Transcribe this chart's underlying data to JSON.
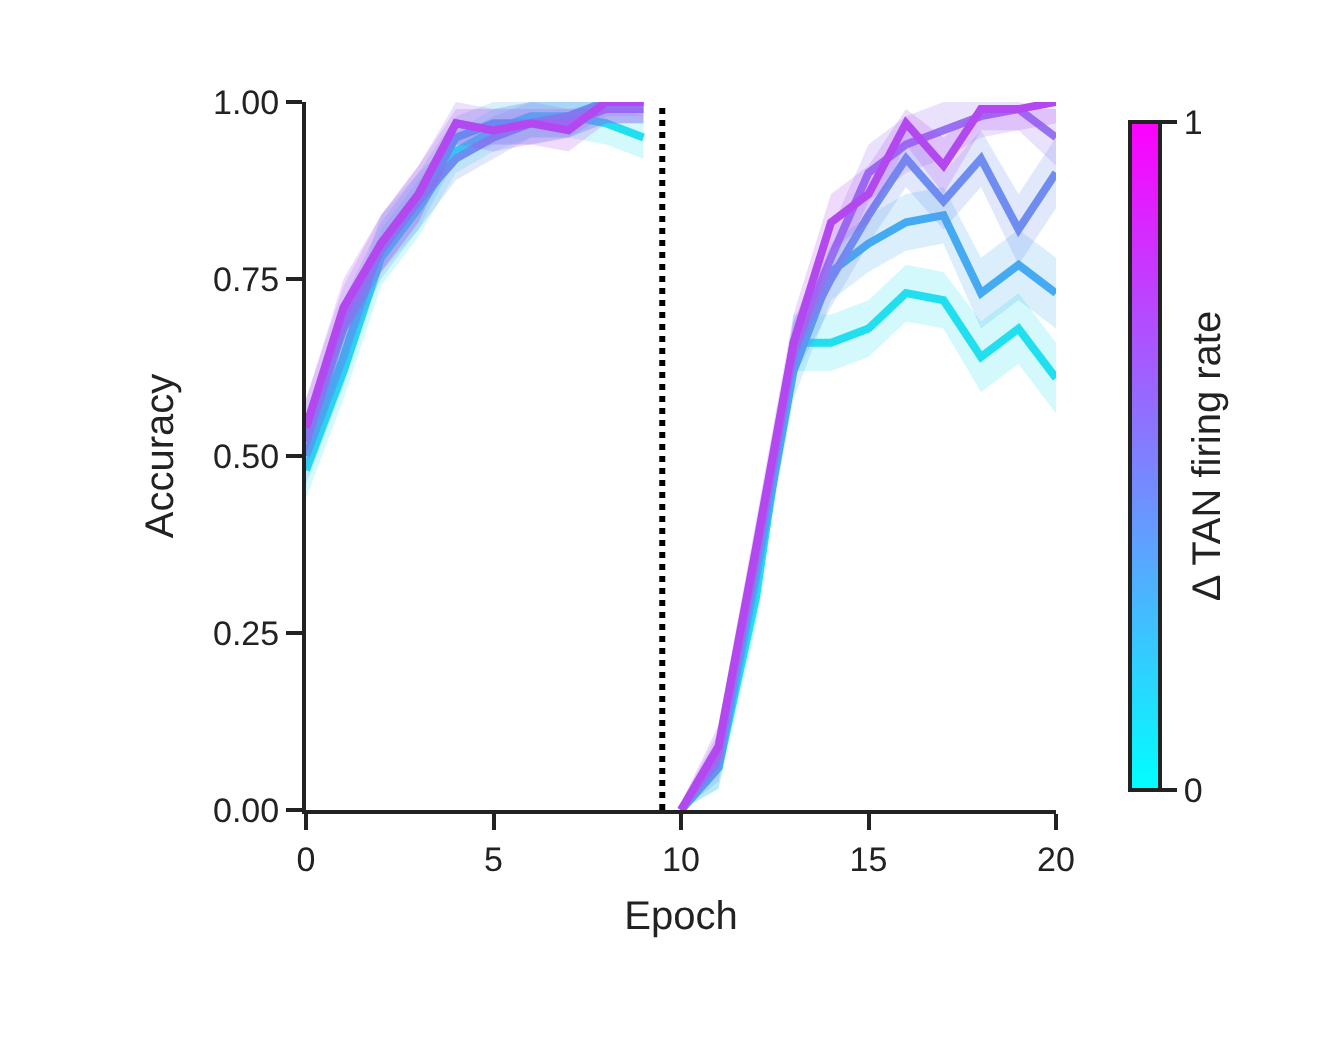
{
  "chart_data": {
    "type": "line",
    "xlabel": "Epoch",
    "ylabel": "Accuracy",
    "clabel": "Δ TAN firing rate",
    "xlim": [
      0,
      20
    ],
    "xticks": [
      0,
      5,
      10,
      15,
      20
    ],
    "ylim": [
      0,
      1
    ],
    "yticks": [
      {
        "value": 0,
        "label": "0.00"
      },
      {
        "value": 0.25,
        "label": "0.25"
      },
      {
        "value": 0.5,
        "label": "0.50"
      },
      {
        "value": 0.75,
        "label": "0.75"
      },
      {
        "value": 1,
        "label": "1.00"
      }
    ],
    "clim": [
      0,
      1
    ],
    "cticks": [
      0,
      1
    ],
    "grid": false,
    "marker": "none",
    "line_style": "solid",
    "ref_lines": [
      {
        "axis": "x",
        "value": 9.5,
        "color": "#000000",
        "line_style": "dotted"
      }
    ],
    "series": [
      {
        "color": "#22dff0",
        "x": [
          0,
          1,
          2,
          3,
          4,
          5,
          6,
          7,
          8,
          9
        ],
        "values": [
          0.48,
          0.62,
          0.78,
          0.85,
          0.93,
          0.96,
          0.98,
          0.98,
          0.97,
          0.95
        ],
        "lower": [
          0.44,
          0.58,
          0.74,
          0.81,
          0.9,
          0.93,
          0.95,
          0.95,
          0.94,
          0.92
        ],
        "upper": [
          0.52,
          0.66,
          0.82,
          0.89,
          0.96,
          0.99,
          1.0,
          1.0,
          1.0,
          0.98
        ]
      },
      {
        "color": "#44aaf2",
        "x": [
          0,
          1,
          2,
          3,
          4,
          5,
          6,
          7,
          8,
          9
        ],
        "values": [
          0.5,
          0.64,
          0.8,
          0.86,
          0.95,
          0.97,
          0.97,
          0.98,
          1.0,
          1.0
        ],
        "lower": [
          0.46,
          0.6,
          0.76,
          0.82,
          0.92,
          0.94,
          0.94,
          0.95,
          0.97,
          0.97
        ],
        "upper": [
          0.54,
          0.68,
          0.84,
          0.9,
          0.98,
          1.0,
          1.0,
          1.0,
          1.0,
          1.0
        ]
      },
      {
        "color": "#6f8cf0",
        "x": [
          0,
          1,
          2,
          3,
          4,
          5,
          6,
          7,
          8,
          9
        ],
        "values": [
          0.52,
          0.68,
          0.79,
          0.86,
          0.92,
          0.95,
          0.97,
          0.98,
          1.0,
          1.0
        ],
        "lower": [
          0.48,
          0.64,
          0.75,
          0.82,
          0.89,
          0.92,
          0.95,
          0.95,
          0.98,
          0.98
        ],
        "upper": [
          0.56,
          0.72,
          0.83,
          0.9,
          0.95,
          0.98,
          1.0,
          1.0,
          1.0,
          1.0
        ]
      },
      {
        "color": "#9870f2",
        "x": [
          0,
          1,
          2,
          3,
          4,
          5,
          6,
          7,
          8,
          9
        ],
        "values": [
          0.54,
          0.7,
          0.8,
          0.87,
          0.97,
          0.96,
          0.97,
          0.97,
          0.99,
          0.99
        ],
        "lower": [
          0.5,
          0.66,
          0.76,
          0.83,
          0.94,
          0.94,
          0.94,
          0.95,
          0.97,
          0.97
        ],
        "upper": [
          0.58,
          0.74,
          0.84,
          0.91,
          1.0,
          0.99,
          1.0,
          0.99,
          1.0,
          1.0
        ]
      },
      {
        "color": "#b448f0",
        "x": [
          0,
          1,
          2,
          3,
          4,
          5,
          6,
          7,
          8,
          9
        ],
        "values": [
          0.54,
          0.71,
          0.8,
          0.87,
          0.97,
          0.96,
          0.97,
          0.96,
          1.0,
          1.0
        ],
        "lower": [
          0.5,
          0.67,
          0.76,
          0.83,
          0.94,
          0.93,
          0.94,
          0.93,
          0.97,
          0.97
        ],
        "upper": [
          0.58,
          0.75,
          0.84,
          0.91,
          0.99,
          0.99,
          0.99,
          0.99,
          0.99,
          0.99
        ]
      },
      {
        "color": "#22dff0",
        "x": [
          10,
          11,
          12,
          13,
          14,
          15,
          16,
          17,
          18,
          19,
          20
        ],
        "values": [
          0,
          0.06,
          0.3,
          0.66,
          0.66,
          0.68,
          0.73,
          0.72,
          0.64,
          0.68,
          0.61
        ],
        "lower": [
          0,
          0.03,
          0.26,
          0.62,
          0.62,
          0.64,
          0.69,
          0.68,
          0.59,
          0.63,
          0.56
        ],
        "upper": [
          0.01,
          0.09,
          0.34,
          0.7,
          0.7,
          0.72,
          0.77,
          0.76,
          0.69,
          0.73,
          0.66
        ]
      },
      {
        "color": "#44aaf2",
        "x": [
          10,
          11,
          12,
          13,
          14,
          15,
          16,
          17,
          18,
          19,
          20
        ],
        "values": [
          0,
          0.06,
          0.33,
          0.62,
          0.76,
          0.8,
          0.83,
          0.84,
          0.73,
          0.77,
          0.73
        ],
        "lower": [
          0,
          0.03,
          0.29,
          0.58,
          0.72,
          0.76,
          0.79,
          0.8,
          0.68,
          0.72,
          0.68
        ],
        "upper": [
          0.01,
          0.09,
          0.37,
          0.66,
          0.8,
          0.84,
          0.87,
          0.88,
          0.78,
          0.82,
          0.78
        ]
      },
      {
        "color": "#6f8cf0",
        "x": [
          10,
          11,
          12,
          13,
          14,
          15,
          16,
          17,
          18,
          19,
          20
        ],
        "values": [
          0,
          0.07,
          0.35,
          0.65,
          0.75,
          0.84,
          0.92,
          0.86,
          0.92,
          0.82,
          0.9
        ],
        "lower": [
          0,
          0.04,
          0.31,
          0.61,
          0.71,
          0.8,
          0.88,
          0.82,
          0.88,
          0.77,
          0.85
        ],
        "upper": [
          0.01,
          0.1,
          0.39,
          0.69,
          0.79,
          0.88,
          0.96,
          0.9,
          0.96,
          0.87,
          0.95
        ]
      },
      {
        "color": "#9870f2",
        "x": [
          10,
          11,
          12,
          13,
          14,
          15,
          16,
          17,
          18,
          19,
          20
        ],
        "values": [
          0,
          0.08,
          0.36,
          0.65,
          0.78,
          0.9,
          0.94,
          0.96,
          0.98,
          0.99,
          0.95
        ],
        "lower": [
          0,
          0.05,
          0.32,
          0.61,
          0.74,
          0.86,
          0.9,
          0.92,
          0.95,
          0.96,
          0.91
        ],
        "upper": [
          0.01,
          0.11,
          0.4,
          0.69,
          0.82,
          0.94,
          0.98,
          1.0,
          1.0,
          1.0,
          0.99
        ]
      },
      {
        "color": "#b448f0",
        "x": [
          10,
          11,
          12,
          13,
          14,
          15,
          16,
          17,
          18,
          19,
          20
        ],
        "values": [
          0,
          0.09,
          0.37,
          0.66,
          0.83,
          0.87,
          0.97,
          0.91,
          0.99,
          0.99,
          1.0
        ],
        "lower": [
          0,
          0.06,
          0.33,
          0.62,
          0.79,
          0.83,
          0.94,
          0.87,
          0.96,
          0.96,
          0.97
        ],
        "upper": [
          0.01,
          0.12,
          0.41,
          0.7,
          0.87,
          0.91,
          0.99,
          0.95,
          0.99,
          0.99,
          0.99
        ]
      }
    ]
  }
}
